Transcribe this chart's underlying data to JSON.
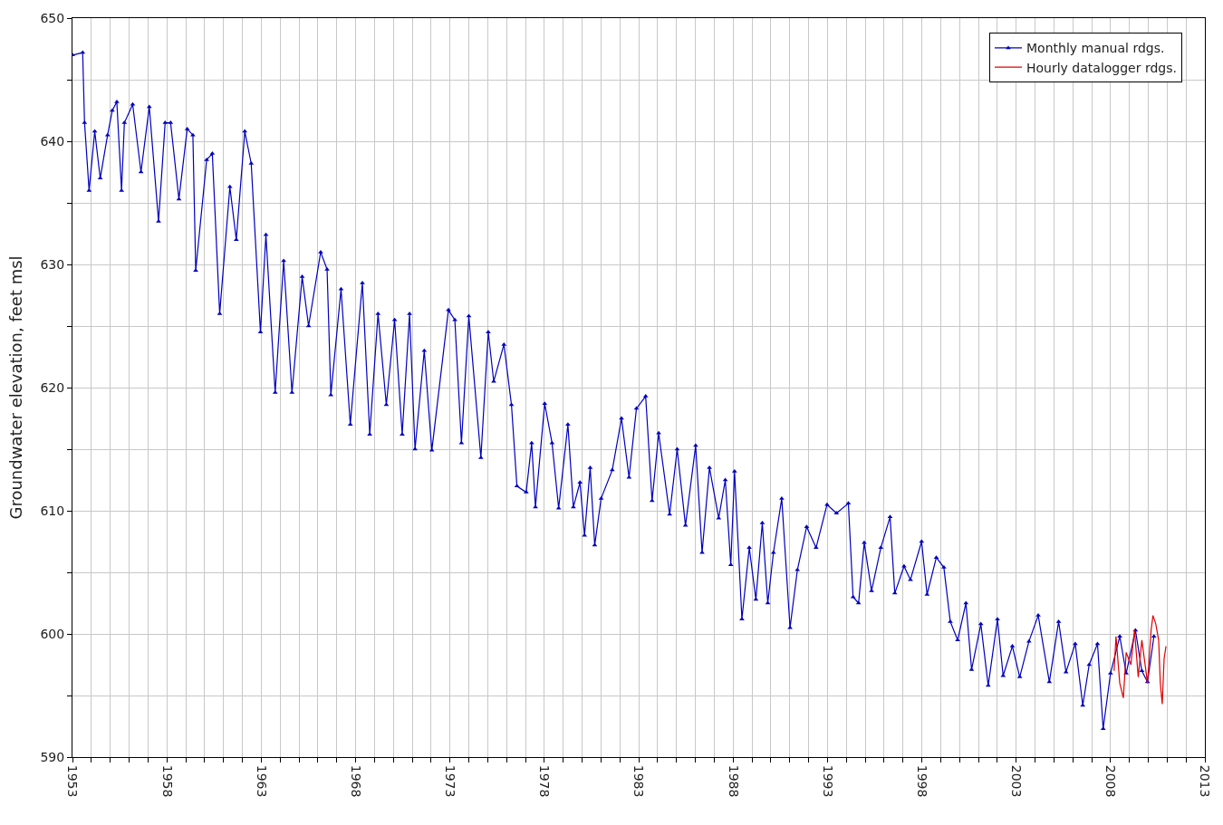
{
  "chart_data": {
    "type": "line",
    "ylabel": "Groundwater elevation, feet msl",
    "xlim": [
      1953,
      2013
    ],
    "ylim": [
      590,
      650
    ],
    "xticks": [
      1953,
      {
        "value": 1954,
        "label": null
      },
      {
        "value": 1955,
        "label": null
      },
      {
        "value": 1956,
        "label": null
      },
      {
        "value": 1957,
        "label": null
      },
      1958,
      {
        "value": 1959,
        "label": null
      },
      {
        "value": 1960,
        "label": null
      },
      {
        "value": 1961,
        "label": null
      },
      {
        "value": 1962,
        "label": null
      },
      1963,
      {
        "value": 1964,
        "label": null
      },
      {
        "value": 1965,
        "label": null
      },
      {
        "value": 1966,
        "label": null
      },
      {
        "value": 1967,
        "label": null
      },
      1968,
      {
        "value": 1969,
        "label": null
      },
      {
        "value": 1970,
        "label": null
      },
      {
        "value": 1971,
        "label": null
      },
      {
        "value": 1972,
        "label": null
      },
      1973,
      {
        "value": 1974,
        "label": null
      },
      {
        "value": 1975,
        "label": null
      },
      {
        "value": 1976,
        "label": null
      },
      {
        "value": 1977,
        "label": null
      },
      1978,
      {
        "value": 1979,
        "label": null
      },
      {
        "value": 1980,
        "label": null
      },
      {
        "value": 1981,
        "label": null
      },
      {
        "value": 1982,
        "label": null
      },
      1983,
      {
        "value": 1984,
        "label": null
      },
      {
        "value": 1985,
        "label": null
      },
      {
        "value": 1986,
        "label": null
      },
      {
        "value": 1987,
        "label": null
      },
      1988,
      {
        "value": 1989,
        "label": null
      },
      {
        "value": 1990,
        "label": null
      },
      {
        "value": 1991,
        "label": null
      },
      {
        "value": 1992,
        "label": null
      },
      1993,
      {
        "value": 1994,
        "label": null
      },
      {
        "value": 1995,
        "label": null
      },
      {
        "value": 1996,
        "label": null
      },
      {
        "value": 1997,
        "label": null
      },
      1998,
      {
        "value": 1999,
        "label": null
      },
      {
        "value": 2000,
        "label": null
      },
      {
        "value": 2001,
        "label": null
      },
      {
        "value": 2002,
        "label": null
      },
      2003,
      {
        "value": 2004,
        "label": null
      },
      {
        "value": 2005,
        "label": null
      },
      {
        "value": 2006,
        "label": null
      },
      {
        "value": 2007,
        "label": null
      },
      2008,
      {
        "value": 2009,
        "label": null
      },
      {
        "value": 2010,
        "label": null
      },
      {
        "value": 2011,
        "label": null
      },
      {
        "value": 2012,
        "label": null
      },
      2013
    ],
    "yticks": [
      590,
      {
        "value": 595,
        "label": null
      },
      600,
      {
        "value": 605,
        "label": null
      },
      610,
      {
        "value": 615,
        "label": null
      },
      620,
      {
        "value": 625,
        "label": null
      },
      630,
      {
        "value": 635,
        "label": null
      },
      640,
      {
        "value": 645,
        "label": null
      },
      650
    ],
    "grid": true,
    "legend": "top right",
    "series": [
      {
        "name": "Monthly manual rdgs.",
        "color": "#0000c0",
        "marker": "triangle",
        "x": [
          1953.0,
          1953.54,
          1953.64,
          1953.88,
          1954.18,
          1954.47,
          1954.86,
          1955.11,
          1955.35,
          1955.6,
          1955.75,
          1956.19,
          1956.63,
          1957.07,
          1957.56,
          1957.91,
          1958.2,
          1958.64,
          1959.08,
          1959.38,
          1959.53,
          1960.11,
          1960.41,
          1960.8,
          1961.34,
          1961.68,
          1962.13,
          1962.47,
          1962.96,
          1963.25,
          1963.74,
          1964.19,
          1964.63,
          1965.17,
          1965.51,
          1966.15,
          1966.49,
          1966.69,
          1967.23,
          1967.72,
          1968.36,
          1968.75,
          1969.19,
          1969.63,
          1970.07,
          1970.47,
          1970.86,
          1971.15,
          1971.64,
          1972.04,
          1972.92,
          1973.26,
          1973.61,
          1974.0,
          1974.64,
          1975.03,
          1975.32,
          1975.86,
          1976.26,
          1976.55,
          1977.04,
          1977.33,
          1977.53,
          1978.02,
          1978.41,
          1978.76,
          1979.25,
          1979.54,
          1979.89,
          1980.13,
          1980.43,
          1980.67,
          1981.01,
          1981.6,
          1982.09,
          1982.49,
          1982.88,
          1983.37,
          1983.71,
          1984.06,
          1984.64,
          1985.04,
          1985.48,
          1986.02,
          1986.36,
          1986.75,
          1987.24,
          1987.59,
          1987.88,
          1988.08,
          1988.47,
          1988.86,
          1989.21,
          1989.55,
          1989.84,
          1990.14,
          1990.58,
          1991.02,
          1991.41,
          1991.9,
          1992.4,
          1992.98,
          1993.48,
          1994.11,
          1994.36,
          1994.65,
          1994.95,
          1995.34,
          1995.83,
          1996.32,
          1996.57,
          1997.06,
          1997.4,
          1997.99,
          1998.28,
          1998.77,
          1999.17,
          1999.51,
          1999.9,
          2000.34,
          2000.64,
          2001.13,
          2001.52,
          2002.01,
          2002.31,
          2002.8,
          2003.19,
          2003.68,
          2004.17,
          2004.76,
          2005.25,
          2005.64,
          2006.13,
          2006.53,
          2006.87,
          2007.31,
          2007.61,
          2008.0,
          2008.49,
          2008.83,
          2009.32,
          2009.66,
          2009.96,
          2010.3
        ],
        "values": [
          647.0,
          647.2,
          641.5,
          636,
          640.8,
          637,
          640.5,
          642.5,
          643.2,
          636,
          641.5,
          643,
          637.5,
          642.8,
          633.5,
          641.5,
          641.5,
          635.3,
          641,
          640.5,
          629.5,
          638.5,
          639,
          626,
          636.3,
          632,
          640.8,
          638.2,
          624.5,
          632.4,
          619.6,
          630.3,
          619.6,
          629,
          625,
          631,
          629.6,
          619.4,
          628,
          617,
          628.5,
          616.2,
          626,
          618.6,
          625.5,
          616.2,
          626,
          615,
          623,
          614.9,
          626.3,
          625.5,
          615.5,
          625.8,
          614.3,
          624.5,
          620.5,
          623.5,
          618.6,
          612,
          611.5,
          615.5,
          610.3,
          618.7,
          615.5,
          610.2,
          617,
          610.3,
          612.3,
          608,
          613.5,
          607.2,
          611,
          613.3,
          617.5,
          612.7,
          618.3,
          619.3,
          610.8,
          616.3,
          609.7,
          615,
          608.8,
          615.3,
          606.6,
          613.5,
          609.4,
          612.5,
          605.6,
          613.2,
          601.2,
          607,
          602.8,
          609,
          602.5,
          606.6,
          611,
          600.5,
          605.2,
          608.7,
          607,
          610.5,
          609.8,
          610.6,
          603,
          602.5,
          607.4,
          603.5,
          607,
          609.5,
          603.3,
          605.5,
          604.4,
          607.5,
          603.2,
          606.2,
          605.4,
          601,
          599.5,
          602.5,
          597.1,
          600.8,
          595.8,
          601.2,
          596.6,
          599,
          596.5,
          599.4,
          601.5,
          596.1,
          601,
          596.9,
          599.2,
          594.2,
          597.5,
          599.2,
          592.3,
          596.8,
          599.8,
          596.8,
          600.3,
          597,
          596.1,
          599.8
        ]
      },
      {
        "name": "Hourly datalogger rdgs.",
        "color": "#e00000",
        "marker": "none",
        "x": [
          2008.19,
          2008.29,
          2008.49,
          2008.68,
          2008.83,
          2009.08,
          2009.27,
          2009.47,
          2009.66,
          2009.86,
          2009.96,
          2010.15,
          2010.25,
          2010.4,
          2010.55,
          2010.64,
          2010.74,
          2010.84,
          2010.94
        ],
        "values": [
          597,
          599.8,
          596,
          594.8,
          598.5,
          597.5,
          600.3,
          596.5,
          599.5,
          597.2,
          596,
          600.3,
          601.5,
          600.8,
          599.5,
          596,
          594.3,
          598,
          599
        ]
      }
    ]
  }
}
